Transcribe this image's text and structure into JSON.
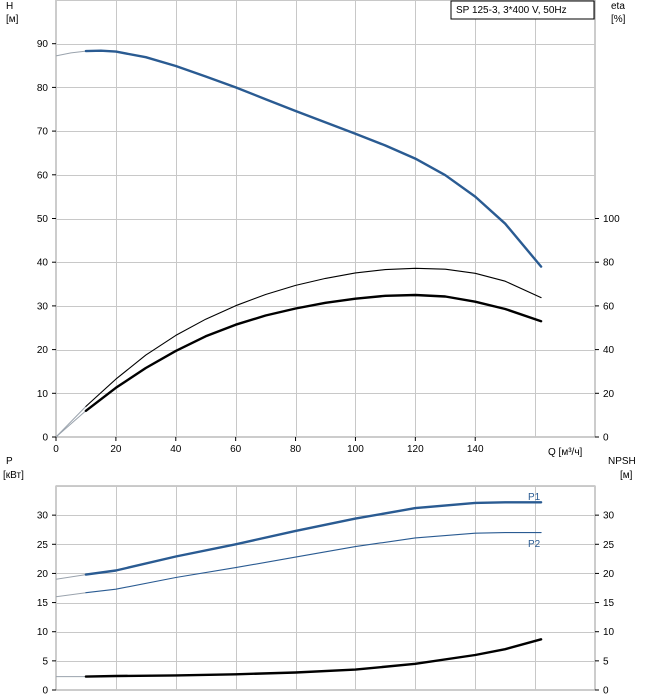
{
  "chart_data": [
    {
      "type": "line",
      "panel": "head-efficiency",
      "legend": "SP 125-3, 3*400 V, 50Hz",
      "left_axis": {
        "label_top": "H",
        "label_unit": "[м]",
        "range": [
          0,
          100
        ],
        "ticks": [
          "0",
          "10",
          "20",
          "30",
          "40",
          "50",
          "60",
          "70",
          "80",
          "90"
        ]
      },
      "right_axis": {
        "label_top": "eta",
        "label_unit": "[%]",
        "range": [
          0,
          200
        ],
        "ticks": [
          "0",
          "20",
          "40",
          "60",
          "80",
          "100"
        ]
      },
      "x_axis": {
        "label": "Q [м³/ч]",
        "range": [
          0,
          180
        ],
        "ticks": [
          "0",
          "20",
          "40",
          "60",
          "80",
          "100",
          "120",
          "140"
        ]
      },
      "grid": true,
      "series": [
        {
          "axis": "left",
          "color": "#2a5b92",
          "width": 2.4,
          "x": [
            0,
            5,
            10,
            15,
            20,
            30,
            40,
            50,
            60,
            70,
            80,
            90,
            100,
            110,
            120,
            130,
            140,
            150,
            162
          ],
          "y": [
            87.2,
            87.9,
            88.3,
            88.4,
            88.2,
            86.9,
            84.9,
            82.5,
            80.0,
            77.3,
            74.6,
            72.0,
            69.4,
            66.7,
            63.7,
            59.9,
            55.0,
            48.8,
            39.0
          ]
        },
        {
          "axis": "right",
          "color": "#000000",
          "width": 1.1,
          "x": [
            0,
            10,
            20,
            30,
            40,
            50,
            60,
            70,
            80,
            90,
            100,
            110,
            120,
            130,
            140,
            150,
            162
          ],
          "y": [
            0,
            14,
            26.5,
            37.5,
            46.5,
            53.9,
            60.1,
            65.2,
            69.4,
            72.6,
            75.1,
            76.6,
            77.2,
            76.8,
            74.9,
            71.3,
            63.8
          ]
        },
        {
          "axis": "right",
          "color": "#000000",
          "width": 2.4,
          "x": [
            0,
            10,
            20,
            30,
            40,
            50,
            60,
            70,
            80,
            90,
            100,
            110,
            120,
            130,
            140,
            150,
            162
          ],
          "y": [
            0,
            12,
            22.5,
            31.6,
            39.4,
            46.1,
            51.4,
            55.6,
            58.8,
            61.4,
            63.3,
            64.6,
            65.0,
            64.3,
            61.9,
            58.6,
            53.0
          ]
        }
      ]
    },
    {
      "type": "line",
      "panel": "power-npsh",
      "left_axis": {
        "label_top": "P",
        "label_unit": "[кВт]",
        "range": [
          0,
          35
        ],
        "ticks": [
          "0",
          "5",
          "10",
          "15",
          "20",
          "25",
          "30"
        ]
      },
      "right_axis": {
        "label_top": "NPSH",
        "label_unit": "[м]",
        "range": [
          0,
          35
        ],
        "ticks": [
          "0",
          "5",
          "10",
          "15",
          "20",
          "25",
          "30"
        ]
      },
      "x_axis": {
        "range": [
          0,
          180
        ]
      },
      "grid": true,
      "series": [
        {
          "name": "P1",
          "axis": "left",
          "color": "#2a5b92",
          "width": 2.4,
          "x": [
            0,
            10,
            20,
            40,
            60,
            80,
            100,
            120,
            140,
            150,
            162
          ],
          "y": [
            19.0,
            19.8,
            20.5,
            22.9,
            25.0,
            27.3,
            29.4,
            31.2,
            32.1,
            32.2,
            32.2
          ]
        },
        {
          "name": "P2",
          "axis": "left",
          "color": "#2a5b92",
          "width": 1.1,
          "x": [
            0,
            10,
            20,
            40,
            60,
            80,
            100,
            120,
            140,
            150,
            162
          ],
          "y": [
            16.0,
            16.7,
            17.3,
            19.3,
            21.0,
            22.8,
            24.6,
            26.1,
            26.9,
            27.0,
            27.0
          ]
        },
        {
          "axis": "right",
          "color": "#000000",
          "width": 2.4,
          "x": [
            0,
            10,
            20,
            40,
            60,
            80,
            100,
            120,
            140,
            150,
            162
          ],
          "y": [
            2.3,
            2.3,
            2.4,
            2.5,
            2.7,
            3.0,
            3.5,
            4.5,
            6.0,
            7.0,
            8.7
          ]
        }
      ]
    }
  ]
}
